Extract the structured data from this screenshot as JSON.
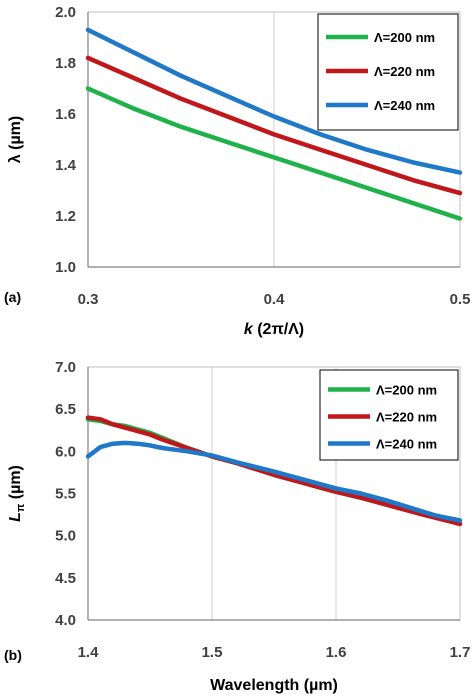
{
  "chart_data": [
    {
      "type": "line",
      "panel_label": "(a)",
      "xlabel_italic": "k",
      "xlabel_rest": " (2π/Λ)",
      "ylabel": "λ (µm)",
      "xlim": [
        0.3,
        0.5
      ],
      "ylim": [
        1.0,
        2.0
      ],
      "x_ticks": [
        "0.3",
        "0.4",
        "0.5"
      ],
      "y_ticks": [
        "1.0",
        "1.2",
        "1.4",
        "1.6",
        "1.8",
        "2.0"
      ],
      "grid": "vertical",
      "legend_position": "top-right",
      "series": [
        {
          "name": "Λ=200 nm",
          "color": "#1fb24a",
          "x": [
            0.3,
            0.325,
            0.35,
            0.375,
            0.4,
            0.425,
            0.45,
            0.475,
            0.5
          ],
          "y": [
            1.7,
            1.62,
            1.55,
            1.49,
            1.43,
            1.37,
            1.31,
            1.25,
            1.19
          ]
        },
        {
          "name": "Λ=220 nm",
          "color": "#c0171c",
          "x": [
            0.3,
            0.325,
            0.35,
            0.375,
            0.4,
            0.425,
            0.45,
            0.475,
            0.5
          ],
          "y": [
            1.82,
            1.74,
            1.66,
            1.59,
            1.52,
            1.46,
            1.4,
            1.34,
            1.29
          ]
        },
        {
          "name": "Λ=240 nm",
          "color": "#1f78c8",
          "x": [
            0.3,
            0.325,
            0.35,
            0.375,
            0.4,
            0.425,
            0.45,
            0.475,
            0.5
          ],
          "y": [
            1.93,
            1.84,
            1.75,
            1.67,
            1.59,
            1.52,
            1.46,
            1.41,
            1.37
          ]
        }
      ]
    },
    {
      "type": "line",
      "panel_label": "(b)",
      "xlabel": "Wavelength (µm)",
      "ylabel_main": "L",
      "ylabel_sub": "π",
      "ylabel_rest": " (µm)",
      "xlim": [
        1.4,
        1.7
      ],
      "ylim": [
        4.0,
        7.0
      ],
      "x_ticks": [
        "1.4",
        "1.5",
        "1.6",
        "1.7"
      ],
      "y_ticks": [
        "4.0",
        "4.5",
        "5.0",
        "5.5",
        "6.0",
        "6.5",
        "7.0"
      ],
      "grid": "vertical",
      "legend_position": "top-right",
      "series": [
        {
          "name": "Λ=200 nm",
          "color": "#1fb24a",
          "x": [
            1.4,
            1.41,
            1.42,
            1.43,
            1.44,
            1.45,
            1.46,
            1.48,
            1.5,
            1.52,
            1.55,
            1.58,
            1.6,
            1.62,
            1.65,
            1.67,
            1.7
          ],
          "y": [
            6.38,
            6.36,
            6.32,
            6.3,
            6.26,
            6.22,
            6.16,
            6.04,
            5.94,
            5.86,
            5.73,
            5.6,
            5.52,
            5.45,
            5.33,
            5.26,
            5.14
          ]
        },
        {
          "name": "Λ=220 nm",
          "color": "#c0171c",
          "x": [
            1.4,
            1.41,
            1.42,
            1.43,
            1.44,
            1.45,
            1.46,
            1.48,
            1.5,
            1.52,
            1.55,
            1.58,
            1.6,
            1.62,
            1.65,
            1.67,
            1.7
          ],
          "y": [
            6.4,
            6.38,
            6.32,
            6.28,
            6.24,
            6.2,
            6.14,
            6.04,
            5.94,
            5.86,
            5.72,
            5.6,
            5.52,
            5.45,
            5.33,
            5.25,
            5.14
          ]
        },
        {
          "name": "Λ=240 nm",
          "color": "#1f78c8",
          "x": [
            1.4,
            1.41,
            1.42,
            1.43,
            1.44,
            1.45,
            1.46,
            1.48,
            1.5,
            1.52,
            1.55,
            1.58,
            1.6,
            1.62,
            1.64,
            1.66,
            1.68,
            1.7
          ],
          "y": [
            5.94,
            6.05,
            6.09,
            6.1,
            6.09,
            6.07,
            6.04,
            6.0,
            5.95,
            5.87,
            5.76,
            5.64,
            5.56,
            5.5,
            5.42,
            5.33,
            5.24,
            5.18
          ]
        }
      ]
    }
  ]
}
